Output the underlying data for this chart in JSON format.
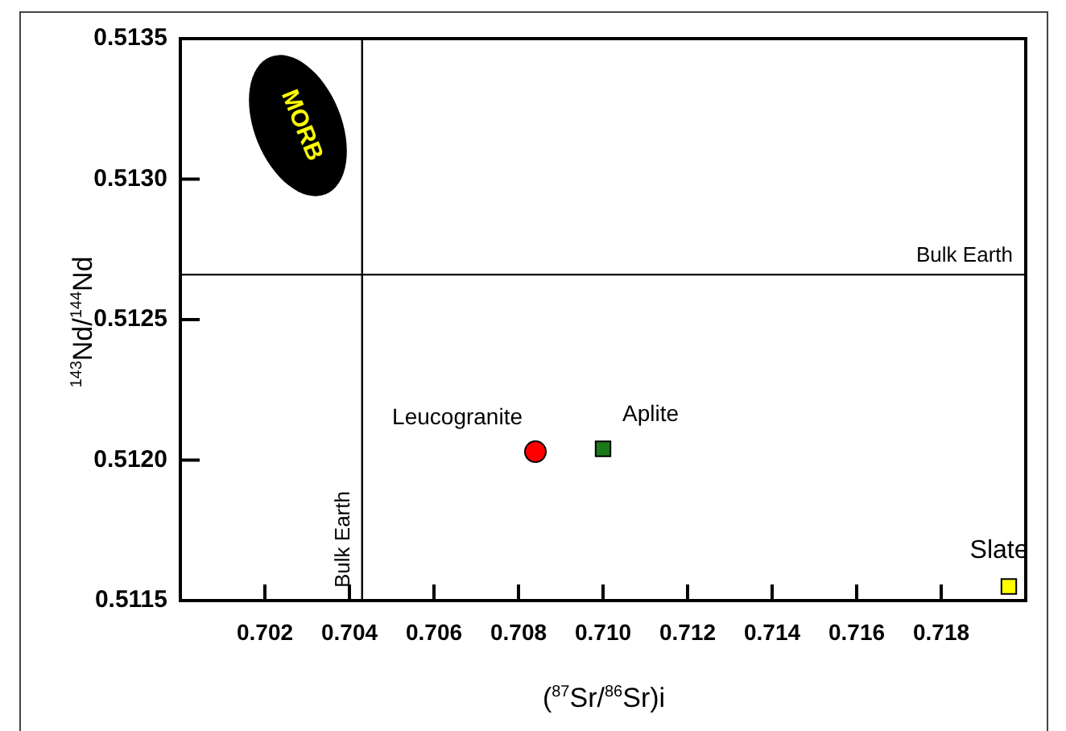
{
  "chart_data": {
    "type": "scatter",
    "xlabel": "($^{87}$Sr/$^{86}$Sr)i",
    "ylabel": "$^{143}$Nd/$^{144}$Nd",
    "xlim": [
      0.7,
      0.72
    ],
    "xticks": [
      {
        "value": 0.702,
        "label": "0.702"
      },
      {
        "value": 0.704,
        "label": "0.704"
      },
      {
        "value": 0.706,
        "label": "0.706"
      },
      {
        "value": 0.708,
        "label": "0.708"
      },
      {
        "value": 0.71,
        "label": "0.710"
      },
      {
        "value": 0.712,
        "label": "0.712"
      },
      {
        "value": 0.714,
        "label": "0.714"
      },
      {
        "value": 0.716,
        "label": "0.716"
      },
      {
        "value": 0.718,
        "label": "0.718"
      }
    ],
    "ylim": [
      0.5115,
      0.5135
    ],
    "yticks": [
      {
        "value": 0.5115,
        "label": "0.5115"
      },
      {
        "value": 0.512,
        "label": "0.5120"
      },
      {
        "value": 0.5125,
        "label": "0.5125"
      },
      {
        "value": 0.513,
        "label": "0.5130"
      },
      {
        "value": 0.5135,
        "label": "0.5135"
      }
    ],
    "series": [
      {
        "name": "Leucogranite",
        "color": "#ff0000",
        "marker": "circle",
        "x": [
          0.7084
        ],
        "values": [
          0.51203
        ]
      },
      {
        "name": "Aplite",
        "color": "#1a7a1a",
        "marker": "square",
        "x": [
          0.71
        ],
        "values": [
          0.51204
        ]
      },
      {
        "name": "Slate",
        "color": "#ffff00",
        "marker": "square",
        "x": [
          0.7196
        ],
        "values": [
          0.51155
        ]
      }
    ],
    "ref_lines": [
      {
        "axis": "x",
        "value": 0.7043,
        "label": "Bulk Earth"
      },
      {
        "axis": "y",
        "value": 0.51266,
        "label": "Bulk Earth"
      }
    ],
    "annotations": [
      "MORB"
    ],
    "grid": false,
    "legend": false
  }
}
